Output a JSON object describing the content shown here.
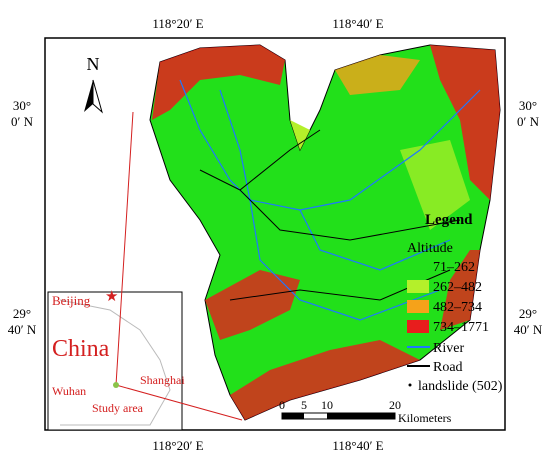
{
  "map": {
    "top_labels": [
      "118°20′ E",
      "118°40′ E"
    ],
    "bottom_labels": [
      "118°20′ E",
      "118°40′ E"
    ],
    "left_labels": [
      [
        "30°",
        "0′ N"
      ],
      [
        "29°",
        "40′ N"
      ]
    ],
    "right_labels": [
      [
        "30°",
        "0′ N"
      ],
      [
        "29°",
        "40′ N"
      ]
    ],
    "north": "N",
    "legend": {
      "title": "Legend",
      "altitude_title": "Altitude",
      "classes": [
        {
          "label": "71–262",
          "color": "#22e01a"
        },
        {
          "label": "262–482",
          "color": "#b4f02a"
        },
        {
          "label": "482–734",
          "color": "#f5a21a"
        },
        {
          "label": "734–1771",
          "color": "#e81d1d"
        }
      ],
      "river": "River",
      "road": "Road",
      "landslide": "landslide (502)"
    },
    "scale_bar": {
      "ticks": [
        "0",
        "5",
        "10",
        "20"
      ],
      "unit": "Kilometers"
    },
    "inset": {
      "beijing": "Beijing",
      "country": "China",
      "wuhan": "Wuhan",
      "shanghai": "Shanghai",
      "study_area": "Study area"
    }
  }
}
